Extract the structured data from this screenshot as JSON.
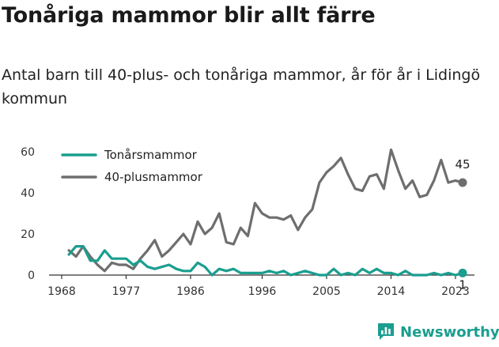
{
  "title": "Tonåriga mammor blir allt färre",
  "subtitle": "Antal barn till 40-plus- och tonåriga mammor, år för år i Lidingö kommun",
  "brand": "Newsworthy",
  "colors": {
    "teal": "#1a9e8f",
    "gray": "#6e6e6e",
    "axis": "#333333"
  },
  "chart_data": {
    "type": "line",
    "x": [
      1969,
      1970,
      1971,
      1972,
      1973,
      1974,
      1975,
      1976,
      1977,
      1978,
      1979,
      1980,
      1981,
      1982,
      1983,
      1984,
      1985,
      1986,
      1987,
      1988,
      1989,
      1990,
      1991,
      1992,
      1993,
      1994,
      1995,
      1996,
      1997,
      1998,
      1999,
      2000,
      2001,
      2002,
      2003,
      2004,
      2005,
      2006,
      2007,
      2008,
      2009,
      2010,
      2011,
      2012,
      2013,
      2014,
      2015,
      2016,
      2017,
      2018,
      2019,
      2020,
      2021,
      2022,
      2023,
      2024
    ],
    "xticks": [
      1968,
      1977,
      1986,
      1996,
      2005,
      2014,
      2023
    ],
    "xtick_labels": [
      "1968",
      "1977",
      "1986",
      "1996",
      "2005",
      "2014",
      "2023"
    ],
    "xlim": [
      1968,
      2024
    ],
    "ylim": [
      0,
      60
    ],
    "yticks": [
      0,
      20,
      40,
      60
    ],
    "ytick_labels": [
      "0",
      "20",
      "40",
      "60"
    ],
    "legend_position": "top-left",
    "grid": false,
    "series": [
      {
        "name": "Tonårsmammor",
        "color": "#1a9e8f",
        "end_label": "1",
        "values": [
          10,
          14,
          14,
          7,
          7,
          12,
          8,
          8,
          8,
          5,
          7,
          4,
          3,
          4,
          5,
          3,
          2,
          2,
          6,
          4,
          0,
          3,
          2,
          3,
          1,
          1,
          1,
          1,
          2,
          1,
          2,
          0,
          1,
          2,
          1,
          0,
          0,
          3,
          0,
          1,
          0,
          3,
          1,
          3,
          1,
          1,
          0,
          2,
          0,
          0,
          0,
          1,
          0,
          1,
          0,
          1
        ]
      },
      {
        "name": "40-plusmammor",
        "color": "#6e6e6e",
        "end_label": "45",
        "values": [
          12,
          9,
          14,
          9,
          5,
          2,
          6,
          5,
          5,
          3,
          8,
          12,
          17,
          9,
          12,
          16,
          20,
          15,
          26,
          20,
          23,
          30,
          16,
          15,
          23,
          19,
          35,
          30,
          28,
          28,
          27,
          29,
          22,
          28,
          32,
          45,
          50,
          53,
          57,
          49,
          42,
          41,
          48,
          49,
          42,
          61,
          51,
          42,
          46,
          38,
          39,
          46,
          56,
          45,
          46,
          45
        ]
      }
    ]
  }
}
